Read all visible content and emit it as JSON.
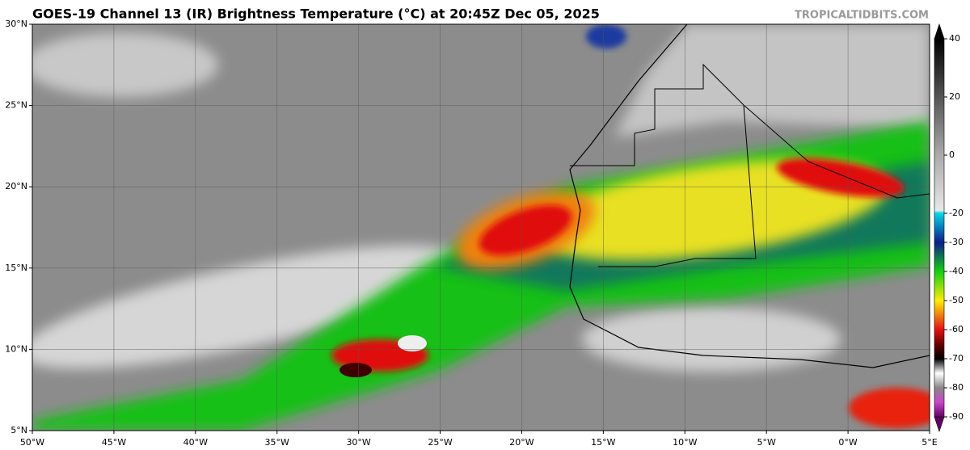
{
  "header": {
    "title": "GOES-19 Channel 13 (IR) Brightness Temperature (°C) at 20:45Z Dec 05, 2025",
    "watermark": "TROPICALTIDBITS.COM"
  },
  "map": {
    "xlim": [
      -50,
      5
    ],
    "ylim": [
      5,
      30
    ],
    "xticks": [
      {
        "value": -50,
        "label": "50°W"
      },
      {
        "value": -45,
        "label": "45°W"
      },
      {
        "value": -40,
        "label": "40°W"
      },
      {
        "value": -35,
        "label": "35°W"
      },
      {
        "value": -30,
        "label": "30°W"
      },
      {
        "value": -25,
        "label": "25°W"
      },
      {
        "value": -20,
        "label": "20°W"
      },
      {
        "value": -15,
        "label": "15°W"
      },
      {
        "value": -10,
        "label": "10°W"
      },
      {
        "value": -5,
        "label": "5°W"
      },
      {
        "value": 0,
        "label": "0°W"
      },
      {
        "value": 5,
        "label": "5°E"
      }
    ],
    "yticks": [
      {
        "value": 30,
        "label": "30°N"
      },
      {
        "value": 25,
        "label": "25°N"
      },
      {
        "value": 20,
        "label": "20°N"
      },
      {
        "value": 15,
        "label": "15°N"
      },
      {
        "value": 10,
        "label": "10°N"
      },
      {
        "value": 5,
        "label": "5°N"
      }
    ],
    "grid": true
  },
  "colorbar": {
    "lim": [
      -90,
      40
    ],
    "ticks": [
      40,
      20,
      0,
      -20,
      -30,
      -40,
      -50,
      -60,
      -70,
      -80,
      -90
    ],
    "colormap": [
      {
        "value": 40,
        "color": "#000000"
      },
      {
        "value": 20,
        "color": "#555555"
      },
      {
        "value": 0,
        "color": "#aaaaaa"
      },
      {
        "value": -19,
        "color": "#e8e8e8"
      },
      {
        "value": -20,
        "color": "#00d8e8"
      },
      {
        "value": -30,
        "color": "#0a1f8c"
      },
      {
        "value": -40,
        "color": "#10d010"
      },
      {
        "value": -50,
        "color": "#ffee00"
      },
      {
        "value": -60,
        "color": "#e81010"
      },
      {
        "value": -65,
        "color": "#6a0000"
      },
      {
        "value": -70,
        "color": "#000000"
      },
      {
        "value": -75,
        "color": "#ffffff"
      },
      {
        "value": -80,
        "color": "#888888"
      },
      {
        "value": -85,
        "color": "#cc44cc"
      },
      {
        "value": -90,
        "color": "#660066"
      }
    ]
  }
}
